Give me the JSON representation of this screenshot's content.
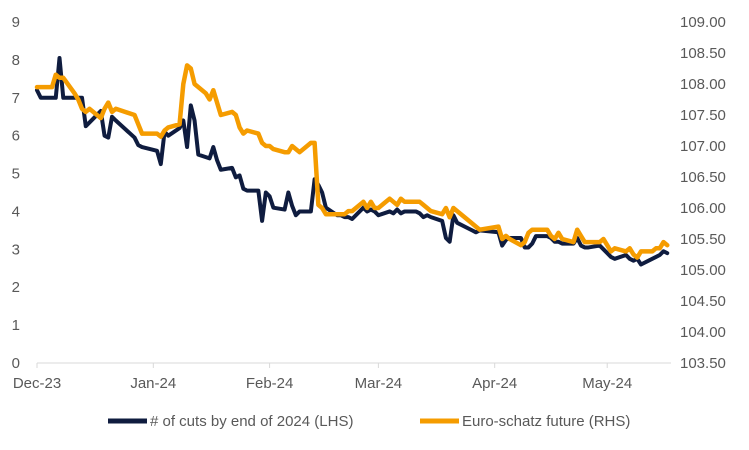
{
  "chart_data": {
    "type": "line",
    "title": "",
    "xlabel": "",
    "ylabel_left": "",
    "ylabel_right": "",
    "x_tick_labels": [
      "Dec-23",
      "Jan-24",
      "Feb-24",
      "Mar-24",
      "Apr-24",
      "May-24"
    ],
    "x_tick_dates": [
      "2023-12-01",
      "2024-01-01",
      "2024-02-01",
      "2024-03-01",
      "2024-04-01",
      "2024-05-01"
    ],
    "xlim": [
      "2023-12-01",
      "2024-05-18"
    ],
    "y_left": {
      "min": 0,
      "max": 9,
      "ticks": [
        "0",
        "1",
        "2",
        "3",
        "4",
        "5",
        "6",
        "7",
        "8",
        "9"
      ]
    },
    "y_right": {
      "min": 103.5,
      "max": 109.0,
      "ticks": [
        "103.50",
        "104.00",
        "104.50",
        "105.00",
        "105.50",
        "106.00",
        "106.50",
        "107.00",
        "107.50",
        "108.00",
        "108.50",
        "109.00"
      ]
    },
    "grid": false,
    "legend_position": "bottom",
    "series": [
      {
        "name": "# of cuts by end of 2024 (LHS)",
        "axis": "left",
        "color": "#0f1c3f",
        "points": [
          [
            "2023-12-01",
            7.2
          ],
          [
            "2023-12-02",
            7.0
          ],
          [
            "2023-12-05",
            7.0
          ],
          [
            "2023-12-06",
            7.0
          ],
          [
            "2023-12-07",
            8.05
          ],
          [
            "2023-12-08",
            7.0
          ],
          [
            "2023-12-11",
            7.0
          ],
          [
            "2023-12-12",
            7.0
          ],
          [
            "2023-12-13",
            7.0
          ],
          [
            "2023-12-14",
            6.25
          ],
          [
            "2023-12-15",
            6.35
          ],
          [
            "2023-12-18",
            6.65
          ],
          [
            "2023-12-19",
            6.0
          ],
          [
            "2023-12-20",
            5.95
          ],
          [
            "2023-12-21",
            6.5
          ],
          [
            "2023-12-22",
            6.4
          ],
          [
            "2023-12-27",
            5.95
          ],
          [
            "2023-12-28",
            5.75
          ],
          [
            "2023-12-29",
            5.7
          ],
          [
            "2024-01-02",
            5.6
          ],
          [
            "2024-01-03",
            5.25
          ],
          [
            "2024-01-04",
            6.1
          ],
          [
            "2024-01-05",
            6.0
          ],
          [
            "2024-01-08",
            6.2
          ],
          [
            "2024-01-09",
            6.4
          ],
          [
            "2024-01-10",
            5.7
          ],
          [
            "2024-01-11",
            6.8
          ],
          [
            "2024-01-12",
            6.4
          ],
          [
            "2024-01-13",
            5.5
          ],
          [
            "2024-01-16",
            5.4
          ],
          [
            "2024-01-17",
            5.7
          ],
          [
            "2024-01-18",
            5.35
          ],
          [
            "2024-01-19",
            5.1
          ],
          [
            "2024-01-22",
            5.15
          ],
          [
            "2024-01-23",
            4.9
          ],
          [
            "2024-01-24",
            4.95
          ],
          [
            "2024-01-25",
            4.6
          ],
          [
            "2024-01-26",
            4.55
          ],
          [
            "2024-01-29",
            4.55
          ],
          [
            "2024-01-30",
            3.75
          ],
          [
            "2024-01-31",
            4.5
          ],
          [
            "2024-02-01",
            4.4
          ],
          [
            "2024-02-02",
            4.1
          ],
          [
            "2024-02-05",
            4.05
          ],
          [
            "2024-02-06",
            4.5
          ],
          [
            "2024-02-07",
            4.15
          ],
          [
            "2024-02-08",
            3.9
          ],
          [
            "2024-02-09",
            4.0
          ],
          [
            "2024-02-12",
            4.0
          ],
          [
            "2024-02-13",
            4.85
          ],
          [
            "2024-02-14",
            4.7
          ],
          [
            "2024-02-15",
            4.5
          ],
          [
            "2024-02-16",
            4.1
          ],
          [
            "2024-02-19",
            3.9
          ],
          [
            "2024-02-20",
            3.9
          ],
          [
            "2024-02-21",
            3.85
          ],
          [
            "2024-02-22",
            3.85
          ],
          [
            "2024-02-23",
            3.8
          ],
          [
            "2024-02-26",
            4.1
          ],
          [
            "2024-02-27",
            4.0
          ],
          [
            "2024-02-28",
            4.05
          ],
          [
            "2024-02-29",
            4.0
          ],
          [
            "2024-03-01",
            3.9
          ],
          [
            "2024-03-04",
            4.0
          ],
          [
            "2024-03-05",
            3.95
          ],
          [
            "2024-03-06",
            4.05
          ],
          [
            "2024-03-07",
            3.95
          ],
          [
            "2024-03-08",
            4.0
          ],
          [
            "2024-03-11",
            4.0
          ],
          [
            "2024-03-12",
            3.95
          ],
          [
            "2024-03-13",
            3.85
          ],
          [
            "2024-03-14",
            3.9
          ],
          [
            "2024-03-15",
            3.85
          ],
          [
            "2024-03-18",
            3.75
          ],
          [
            "2024-03-19",
            3.3
          ],
          [
            "2024-03-20",
            3.2
          ],
          [
            "2024-03-21",
            3.9
          ],
          [
            "2024-03-22",
            3.7
          ],
          [
            "2024-03-25",
            3.55
          ],
          [
            "2024-03-26",
            3.5
          ],
          [
            "2024-03-27",
            3.45
          ],
          [
            "2024-03-28",
            3.5
          ],
          [
            "2024-04-02",
            3.45
          ],
          [
            "2024-04-03",
            3.1
          ],
          [
            "2024-04-04",
            3.25
          ],
          [
            "2024-04-05",
            3.3
          ],
          [
            "2024-04-08",
            3.3
          ],
          [
            "2024-04-09",
            3.05
          ],
          [
            "2024-04-10",
            3.05
          ],
          [
            "2024-04-11",
            3.15
          ],
          [
            "2024-04-12",
            3.35
          ],
          [
            "2024-04-15",
            3.35
          ],
          [
            "2024-04-16",
            3.3
          ],
          [
            "2024-04-17",
            3.2
          ],
          [
            "2024-04-18",
            3.2
          ],
          [
            "2024-04-19",
            3.15
          ],
          [
            "2024-04-22",
            3.15
          ],
          [
            "2024-04-23",
            3.3
          ],
          [
            "2024-04-24",
            3.1
          ],
          [
            "2024-04-25",
            3.05
          ],
          [
            "2024-04-26",
            3.05
          ],
          [
            "2024-04-29",
            3.1
          ],
          [
            "2024-04-30",
            3.0
          ],
          [
            "2024-05-02",
            2.8
          ],
          [
            "2024-05-03",
            2.75
          ],
          [
            "2024-05-06",
            2.85
          ],
          [
            "2024-05-07",
            2.75
          ],
          [
            "2024-05-08",
            2.7
          ],
          [
            "2024-05-09",
            2.75
          ],
          [
            "2024-05-10",
            2.6
          ],
          [
            "2024-05-13",
            2.75
          ],
          [
            "2024-05-14",
            2.8
          ],
          [
            "2024-05-15",
            2.85
          ],
          [
            "2024-05-16",
            2.95
          ],
          [
            "2024-05-17",
            2.9
          ]
        ]
      },
      {
        "name": "Euro-schatz future (RHS)",
        "axis": "right",
        "color": "#f59c00",
        "points": [
          [
            "2023-12-01",
            107.95
          ],
          [
            "2023-12-02",
            107.95
          ],
          [
            "2023-12-05",
            107.95
          ],
          [
            "2023-12-06",
            108.15
          ],
          [
            "2023-12-07",
            108.1
          ],
          [
            "2023-12-08",
            108.1
          ],
          [
            "2023-12-11",
            107.85
          ],
          [
            "2023-12-12",
            107.75
          ],
          [
            "2023-12-13",
            107.6
          ],
          [
            "2023-12-14",
            107.55
          ],
          [
            "2023-12-15",
            107.6
          ],
          [
            "2023-12-18",
            107.45
          ],
          [
            "2023-12-19",
            107.6
          ],
          [
            "2023-12-20",
            107.7
          ],
          [
            "2023-12-21",
            107.55
          ],
          [
            "2023-12-22",
            107.6
          ],
          [
            "2023-12-27",
            107.5
          ],
          [
            "2023-12-28",
            107.35
          ],
          [
            "2023-12-29",
            107.2
          ],
          [
            "2024-01-02",
            107.2
          ],
          [
            "2024-01-03",
            107.15
          ],
          [
            "2024-01-04",
            107.25
          ],
          [
            "2024-01-05",
            107.3
          ],
          [
            "2024-01-08",
            107.35
          ],
          [
            "2024-01-09",
            108.0
          ],
          [
            "2024-01-10",
            108.3
          ],
          [
            "2024-01-11",
            108.25
          ],
          [
            "2024-01-12",
            108.0
          ],
          [
            "2024-01-15",
            107.85
          ],
          [
            "2024-01-16",
            107.75
          ],
          [
            "2024-01-17",
            107.9
          ],
          [
            "2024-01-18",
            107.7
          ],
          [
            "2024-01-19",
            107.5
          ],
          [
            "2024-01-22",
            107.55
          ],
          [
            "2024-01-23",
            107.5
          ],
          [
            "2024-01-24",
            107.3
          ],
          [
            "2024-01-25",
            107.2
          ],
          [
            "2024-01-26",
            107.25
          ],
          [
            "2024-01-29",
            107.2
          ],
          [
            "2024-01-30",
            107.05
          ],
          [
            "2024-01-31",
            107.0
          ],
          [
            "2024-02-01",
            107.0
          ],
          [
            "2024-02-02",
            106.95
          ],
          [
            "2024-02-05",
            106.9
          ],
          [
            "2024-02-06",
            106.9
          ],
          [
            "2024-02-07",
            107.0
          ],
          [
            "2024-02-08",
            106.95
          ],
          [
            "2024-02-09",
            106.9
          ],
          [
            "2024-02-12",
            107.05
          ],
          [
            "2024-02-13",
            107.05
          ],
          [
            "2024-02-14",
            106.05
          ],
          [
            "2024-02-15",
            106.0
          ],
          [
            "2024-02-16",
            105.9
          ],
          [
            "2024-02-19",
            105.9
          ],
          [
            "2024-02-20",
            105.9
          ],
          [
            "2024-02-21",
            105.9
          ],
          [
            "2024-02-22",
            105.95
          ],
          [
            "2024-02-23",
            105.95
          ],
          [
            "2024-02-26",
            106.1
          ],
          [
            "2024-02-27",
            106.0
          ],
          [
            "2024-02-28",
            106.1
          ],
          [
            "2024-02-29",
            106.0
          ],
          [
            "2024-03-01",
            106.0
          ],
          [
            "2024-03-04",
            106.15
          ],
          [
            "2024-03-05",
            106.1
          ],
          [
            "2024-03-06",
            106.05
          ],
          [
            "2024-03-07",
            106.15
          ],
          [
            "2024-03-08",
            106.1
          ],
          [
            "2024-03-11",
            106.1
          ],
          [
            "2024-03-12",
            106.1
          ],
          [
            "2024-03-13",
            106.05
          ],
          [
            "2024-03-14",
            106.0
          ],
          [
            "2024-03-15",
            105.95
          ],
          [
            "2024-03-18",
            105.9
          ],
          [
            "2024-03-19",
            106.0
          ],
          [
            "2024-03-20",
            105.85
          ],
          [
            "2024-03-21",
            106.0
          ],
          [
            "2024-03-22",
            105.95
          ],
          [
            "2024-03-25",
            105.8
          ],
          [
            "2024-03-26",
            105.75
          ],
          [
            "2024-03-27",
            105.7
          ],
          [
            "2024-03-28",
            105.65
          ],
          [
            "2024-04-02",
            105.7
          ],
          [
            "2024-04-03",
            105.5
          ],
          [
            "2024-04-04",
            105.55
          ],
          [
            "2024-04-05",
            105.5
          ],
          [
            "2024-04-08",
            105.4
          ],
          [
            "2024-04-09",
            105.45
          ],
          [
            "2024-04-10",
            105.6
          ],
          [
            "2024-04-11",
            105.65
          ],
          [
            "2024-04-12",
            105.65
          ],
          [
            "2024-04-15",
            105.65
          ],
          [
            "2024-04-16",
            105.55
          ],
          [
            "2024-04-17",
            105.5
          ],
          [
            "2024-04-18",
            105.6
          ],
          [
            "2024-04-19",
            105.5
          ],
          [
            "2024-04-22",
            105.45
          ],
          [
            "2024-04-23",
            105.65
          ],
          [
            "2024-04-24",
            105.55
          ],
          [
            "2024-04-25",
            105.45
          ],
          [
            "2024-04-26",
            105.45
          ],
          [
            "2024-04-29",
            105.45
          ],
          [
            "2024-04-30",
            105.5
          ],
          [
            "2024-05-02",
            105.3
          ],
          [
            "2024-05-03",
            105.35
          ],
          [
            "2024-05-06",
            105.3
          ],
          [
            "2024-05-07",
            105.35
          ],
          [
            "2024-05-08",
            105.25
          ],
          [
            "2024-05-09",
            105.2
          ],
          [
            "2024-05-10",
            105.3
          ],
          [
            "2024-05-13",
            105.3
          ],
          [
            "2024-05-14",
            105.35
          ],
          [
            "2024-05-15",
            105.35
          ],
          [
            "2024-05-16",
            105.45
          ],
          [
            "2024-05-17",
            105.4
          ]
        ]
      }
    ]
  }
}
